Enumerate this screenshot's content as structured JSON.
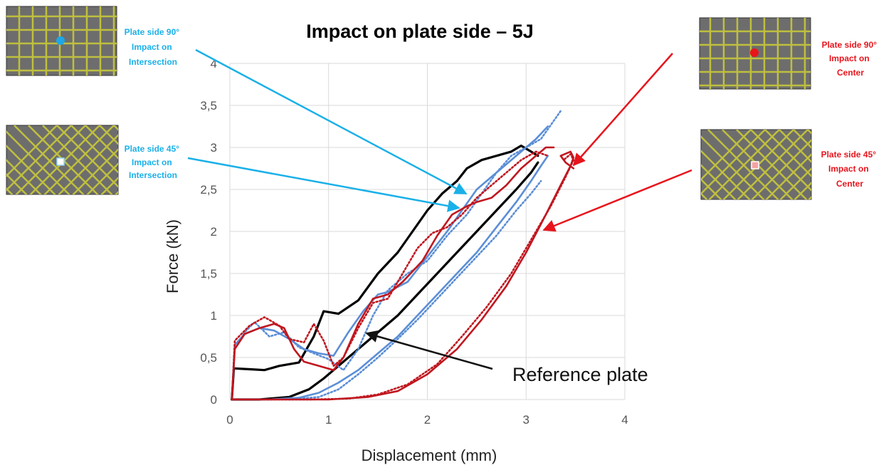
{
  "chart_data": {
    "type": "line",
    "title": "Impact on plate side – 5J",
    "xlabel": "Displacement (mm)",
    "ylabel": "Force (kN)",
    "xlim": [
      0,
      4
    ],
    "ylim": [
      0,
      4
    ],
    "x_ticks": [
      "0",
      "1",
      "2",
      "3",
      "4"
    ],
    "y_ticks": [
      "0",
      "0,5",
      "1",
      "1,5",
      "2",
      "2,5",
      "3",
      "3,5",
      "4"
    ],
    "grid": true,
    "series": [
      {
        "color": "#000000",
        "style": "solid",
        "width": 3.2,
        "points": [
          [
            0.02,
            0
          ],
          [
            0.04,
            0.37
          ],
          [
            0.2,
            0.36
          ],
          [
            0.35,
            0.35
          ],
          [
            0.5,
            0.4
          ],
          [
            0.7,
            0.44
          ],
          [
            0.85,
            0.75
          ],
          [
            0.95,
            1.05
          ],
          [
            1.1,
            1.02
          ],
          [
            1.3,
            1.18
          ],
          [
            1.5,
            1.5
          ],
          [
            1.7,
            1.75
          ],
          [
            1.85,
            2.0
          ],
          [
            2.0,
            2.25
          ],
          [
            2.15,
            2.45
          ],
          [
            2.3,
            2.6
          ],
          [
            2.4,
            2.75
          ],
          [
            2.55,
            2.85
          ],
          [
            2.7,
            2.9
          ],
          [
            2.85,
            2.95
          ],
          [
            2.95,
            3.02
          ],
          [
            3.05,
            2.95
          ],
          [
            3.12,
            2.9
          ]
        ]
      },
      {
        "color": "#000000",
        "style": "solid",
        "width": 3.2,
        "points": [
          [
            0.02,
            0
          ],
          [
            0.3,
            0
          ],
          [
            0.6,
            0.03
          ],
          [
            0.8,
            0.12
          ],
          [
            0.95,
            0.25
          ],
          [
            1.1,
            0.4
          ],
          [
            1.3,
            0.6
          ],
          [
            1.5,
            0.8
          ],
          [
            1.7,
            1.0
          ],
          [
            1.9,
            1.25
          ],
          [
            2.1,
            1.5
          ],
          [
            2.3,
            1.75
          ],
          [
            2.5,
            2.0
          ],
          [
            2.7,
            2.25
          ],
          [
            2.9,
            2.5
          ],
          [
            3.05,
            2.7
          ],
          [
            3.12,
            2.82
          ]
        ]
      },
      {
        "color": "#5b8ed6",
        "style": "solid",
        "width": 2.6,
        "points": [
          [
            0.02,
            0
          ],
          [
            0.05,
            0.65
          ],
          [
            0.15,
            0.78
          ],
          [
            0.3,
            0.85
          ],
          [
            0.45,
            0.82
          ],
          [
            0.6,
            0.72
          ],
          [
            0.75,
            0.6
          ],
          [
            0.9,
            0.55
          ],
          [
            1.05,
            0.52
          ],
          [
            1.2,
            0.8
          ],
          [
            1.35,
            1.05
          ],
          [
            1.5,
            1.25
          ],
          [
            1.6,
            1.28
          ],
          [
            1.8,
            1.4
          ],
          [
            2.0,
            1.7
          ],
          [
            2.2,
            2.0
          ],
          [
            2.35,
            2.25
          ],
          [
            2.5,
            2.5
          ],
          [
            2.65,
            2.65
          ],
          [
            2.8,
            2.8
          ],
          [
            2.95,
            2.95
          ],
          [
            3.1,
            3.1
          ],
          [
            3.22,
            3.25
          ]
        ]
      },
      {
        "color": "#5b8ed6",
        "style": "solid",
        "width": 2.6,
        "points": [
          [
            0.02,
            0
          ],
          [
            0.4,
            0
          ],
          [
            0.7,
            0.02
          ],
          [
            0.9,
            0.08
          ],
          [
            1.1,
            0.2
          ],
          [
            1.3,
            0.35
          ],
          [
            1.5,
            0.55
          ],
          [
            1.7,
            0.75
          ],
          [
            1.9,
            1.0
          ],
          [
            2.1,
            1.25
          ],
          [
            2.3,
            1.5
          ],
          [
            2.5,
            1.75
          ],
          [
            2.7,
            2.05
          ],
          [
            2.9,
            2.35
          ],
          [
            3.05,
            2.6
          ],
          [
            3.15,
            2.78
          ],
          [
            3.22,
            2.9
          ]
        ]
      },
      {
        "color": "#5b8ed6",
        "style": "dot",
        "width": 2.6,
        "points": [
          [
            0.02,
            0
          ],
          [
            0.05,
            0.6
          ],
          [
            0.15,
            0.8
          ],
          [
            0.25,
            0.92
          ],
          [
            0.4,
            0.75
          ],
          [
            0.55,
            0.8
          ],
          [
            0.7,
            0.62
          ],
          [
            0.85,
            0.55
          ],
          [
            1.0,
            0.48
          ],
          [
            1.15,
            0.35
          ],
          [
            1.3,
            0.6
          ],
          [
            1.45,
            1.0
          ],
          [
            1.6,
            1.3
          ],
          [
            1.8,
            1.5
          ],
          [
            2.0,
            1.65
          ],
          [
            2.2,
            1.95
          ],
          [
            2.4,
            2.2
          ],
          [
            2.55,
            2.45
          ],
          [
            2.7,
            2.7
          ],
          [
            2.85,
            2.9
          ],
          [
            3.0,
            3.0
          ],
          [
            3.15,
            3.1
          ],
          [
            3.3,
            3.35
          ],
          [
            3.36,
            3.45
          ]
        ]
      },
      {
        "color": "#5b8ed6",
        "style": "dot",
        "width": 2.6,
        "points": [
          [
            0.6,
            0
          ],
          [
            0.9,
            0.03
          ],
          [
            1.1,
            0.12
          ],
          [
            1.3,
            0.3
          ],
          [
            1.5,
            0.5
          ],
          [
            1.7,
            0.72
          ],
          [
            1.9,
            0.95
          ],
          [
            2.1,
            1.2
          ],
          [
            2.3,
            1.45
          ],
          [
            2.5,
            1.7
          ],
          [
            2.7,
            1.95
          ],
          [
            2.9,
            2.25
          ],
          [
            3.05,
            2.45
          ],
          [
            3.15,
            2.6
          ]
        ]
      },
      {
        "color": "#c0171f",
        "style": "solid",
        "width": 2.6,
        "points": [
          [
            0.02,
            0
          ],
          [
            0.05,
            0.6
          ],
          [
            0.15,
            0.78
          ],
          [
            0.3,
            0.85
          ],
          [
            0.45,
            0.9
          ],
          [
            0.55,
            0.85
          ],
          [
            0.65,
            0.6
          ],
          [
            0.75,
            0.45
          ],
          [
            0.9,
            0.4
          ],
          [
            1.05,
            0.35
          ],
          [
            1.15,
            0.5
          ],
          [
            1.3,
            0.9
          ],
          [
            1.45,
            1.2
          ],
          [
            1.6,
            1.25
          ],
          [
            1.75,
            1.4
          ],
          [
            1.95,
            1.65
          ],
          [
            2.1,
            1.95
          ],
          [
            2.25,
            2.2
          ],
          [
            2.4,
            2.3
          ],
          [
            2.5,
            2.35
          ],
          [
            2.65,
            2.4
          ],
          [
            2.8,
            2.55
          ],
          [
            2.95,
            2.75
          ],
          [
            3.1,
            2.9
          ],
          [
            3.2,
            3.0
          ],
          [
            3.28,
            3.0
          ]
        ]
      },
      {
        "color": "#c0171f",
        "style": "dot",
        "width": 2.6,
        "points": [
          [
            0.02,
            0
          ],
          [
            0.05,
            0.7
          ],
          [
            0.2,
            0.88
          ],
          [
            0.35,
            0.98
          ],
          [
            0.5,
            0.88
          ],
          [
            0.6,
            0.72
          ],
          [
            0.75,
            0.68
          ],
          [
            0.85,
            0.9
          ],
          [
            0.95,
            0.7
          ],
          [
            1.05,
            0.4
          ],
          [
            1.15,
            0.5
          ],
          [
            1.3,
            0.85
          ],
          [
            1.45,
            1.15
          ],
          [
            1.6,
            1.2
          ],
          [
            1.75,
            1.5
          ],
          [
            1.9,
            1.8
          ],
          [
            2.05,
            1.98
          ],
          [
            2.2,
            2.05
          ],
          [
            2.35,
            2.2
          ],
          [
            2.5,
            2.4
          ],
          [
            2.65,
            2.55
          ],
          [
            2.8,
            2.7
          ],
          [
            2.95,
            2.85
          ],
          [
            3.1,
            2.95
          ],
          [
            3.22,
            2.9
          ]
        ]
      },
      {
        "color": "#c0171f",
        "style": "solid",
        "width": 2.6,
        "points": [
          [
            0.02,
            0
          ],
          [
            0.6,
            0
          ],
          [
            1.0,
            0
          ],
          [
            1.4,
            0.03
          ],
          [
            1.7,
            0.1
          ],
          [
            2.0,
            0.3
          ],
          [
            2.3,
            0.6
          ],
          [
            2.55,
            0.95
          ],
          [
            2.8,
            1.35
          ],
          [
            3.0,
            1.75
          ],
          [
            3.2,
            2.2
          ],
          [
            3.35,
            2.55
          ],
          [
            3.45,
            2.78
          ],
          [
            3.48,
            2.88
          ],
          [
            3.45,
            2.95
          ],
          [
            3.35,
            2.9
          ],
          [
            3.4,
            2.82
          ],
          [
            3.48,
            2.75
          ]
        ]
      },
      {
        "color": "#c0171f",
        "style": "dot",
        "width": 2.6,
        "points": [
          [
            0.02,
            0
          ],
          [
            0.8,
            0
          ],
          [
            1.2,
            0.01
          ],
          [
            1.5,
            0.06
          ],
          [
            1.8,
            0.18
          ],
          [
            2.1,
            0.42
          ],
          [
            2.35,
            0.75
          ],
          [
            2.6,
            1.1
          ],
          [
            2.85,
            1.5
          ],
          [
            3.05,
            1.9
          ],
          [
            3.25,
            2.3
          ],
          [
            3.4,
            2.65
          ],
          [
            3.48,
            2.85
          ],
          [
            3.45,
            2.92
          ],
          [
            3.38,
            2.85
          ]
        ]
      }
    ],
    "annotations": [
      {
        "text_lines": [
          "Plate side 90°",
          "Impact on",
          "Intersection"
        ],
        "color": "#1ab0e8"
      },
      {
        "text_lines": [
          "Plate side 45°",
          "Impact on",
          "Intersection"
        ],
        "color": "#1ab0e8"
      },
      {
        "text_lines": [
          "Plate side 90°",
          "Impact on",
          "Center"
        ],
        "color": "#e8141c"
      },
      {
        "text_lines": [
          "Plate side 45°",
          "Impact on",
          "Center"
        ],
        "color": "#e8141c"
      },
      {
        "text_lines": [
          "Reference plate"
        ],
        "color": "#111111"
      }
    ]
  },
  "colors": {
    "grid": "#d9d9d9",
    "tile_bg": "#6d6d6d",
    "tile_grid": "#bfbf3f",
    "blue_marker": "#1ea7e6",
    "white_marker": "#ffffff",
    "red_marker": "#e8141c",
    "pink_marker": "#f4a3a3",
    "ref_arrow": "#111111"
  }
}
